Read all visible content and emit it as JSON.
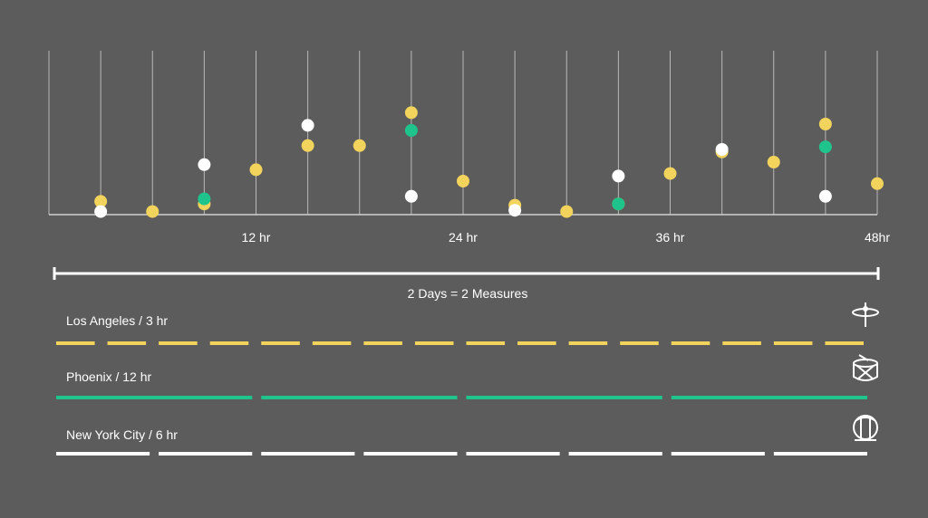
{
  "background": "#5c5c5c",
  "chart_data": {
    "type": "scatter",
    "x_range_hr": [
      0,
      48
    ],
    "x_ticks": [
      {
        "hr": 12,
        "label": "12 hr"
      },
      {
        "hr": 24,
        "label": "24 hr"
      },
      {
        "hr": 36,
        "label": "36 hr"
      },
      {
        "hr": 48,
        "label": "48hr"
      }
    ],
    "gridline_step_hr": 3,
    "y_range": [
      0,
      100
    ],
    "series": [
      {
        "color": "#f2d45c",
        "points": [
          {
            "x": 3,
            "y": 9
          },
          {
            "x": 6,
            "y": 1
          },
          {
            "x": 9,
            "y": 7
          },
          {
            "x": 12,
            "y": 34
          },
          {
            "x": 15,
            "y": 53
          },
          {
            "x": 18,
            "y": 53
          },
          {
            "x": 21,
            "y": 79
          },
          {
            "x": 24,
            "y": 25
          },
          {
            "x": 27,
            "y": 6
          },
          {
            "x": 30,
            "y": 1
          },
          {
            "x": 33,
            "y": 7
          },
          {
            "x": 36,
            "y": 31
          },
          {
            "x": 39,
            "y": 48
          },
          {
            "x": 42,
            "y": 40
          },
          {
            "x": 45,
            "y": 70
          },
          {
            "x": 48,
            "y": 23
          }
        ]
      },
      {
        "color": "#1fc48c",
        "points": [
          {
            "x": 9,
            "y": 11
          },
          {
            "x": 21,
            "y": 65
          },
          {
            "x": 33,
            "y": 7
          },
          {
            "x": 45,
            "y": 52
          }
        ]
      },
      {
        "color": "#ffffff",
        "points": [
          {
            "x": 3,
            "y": 1
          },
          {
            "x": 9,
            "y": 38
          },
          {
            "x": 15,
            "y": 69
          },
          {
            "x": 21,
            "y": 13
          },
          {
            "x": 27,
            "y": 2
          },
          {
            "x": 33,
            "y": 29
          },
          {
            "x": 39,
            "y": 50
          },
          {
            "x": 45,
            "y": 13
          }
        ]
      }
    ]
  },
  "span": {
    "label": "2 Days = 2 Measures"
  },
  "tracks": [
    {
      "label": "Los Angeles / 3 hr",
      "color": "#f2d45c",
      "interval_hr": 3,
      "icon": "cymbal-icon"
    },
    {
      "label": "Phoenix / 12 hr",
      "color": "#1fc48c",
      "interval_hr": 12,
      "icon": "snare-drum-icon"
    },
    {
      "label": "New York City / 6 hr",
      "color": "#ffffff",
      "interval_hr": 6,
      "icon": "bass-drum-icon"
    }
  ]
}
